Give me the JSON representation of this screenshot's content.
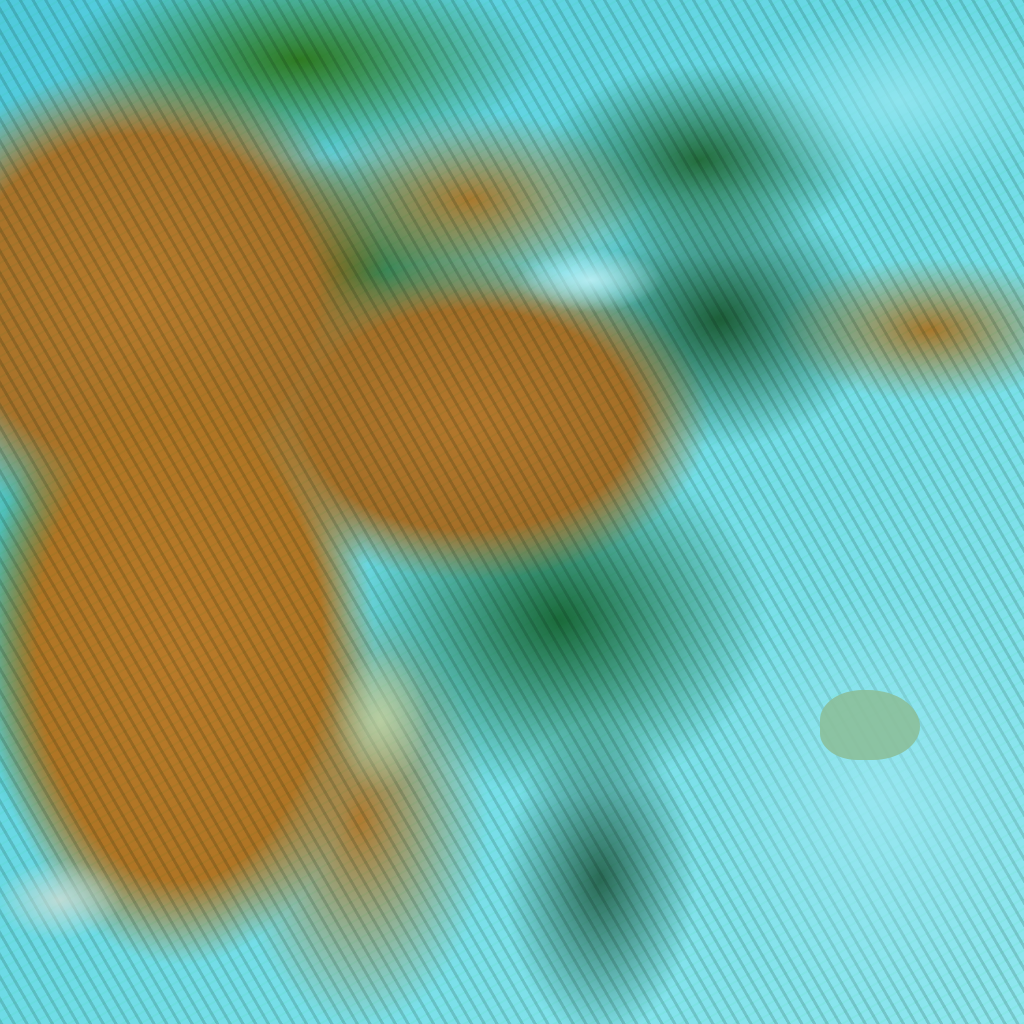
{
  "image": {
    "kind": "false-color satellite imagery",
    "colors": {
      "terrain": "#b07525",
      "vegetation": "#1f7a2e",
      "water_cloud": "#5fd3e2",
      "lake": "#8bbf9a"
    }
  }
}
